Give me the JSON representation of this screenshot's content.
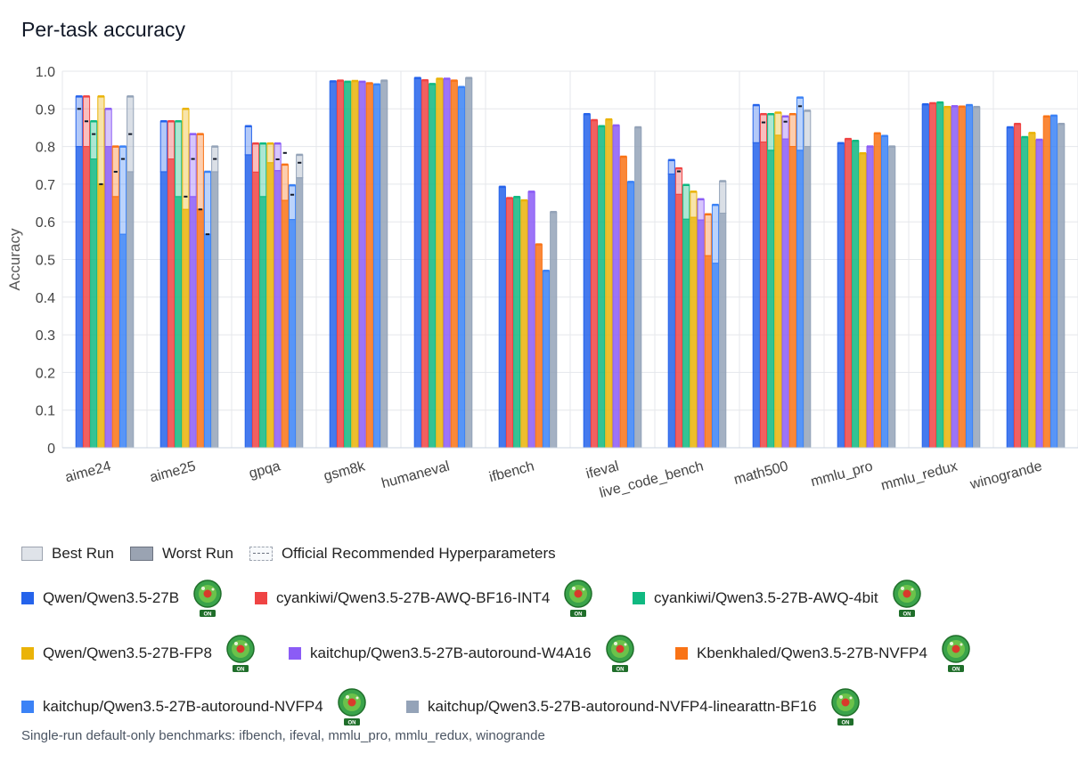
{
  "title": "Per-task accuracy",
  "legend": {
    "best_run": "Best Run",
    "worst_run": "Worst Run",
    "official": "Official Recommended Hyperparameters"
  },
  "badge_text": "ON",
  "footnote": "Single-run default-only benchmarks: ifbench, ifeval, mmlu_pro, mmlu_redux, winogrande",
  "colors": {
    "grid": "#e5e7eb",
    "axis_text": "#444444"
  },
  "chart_data": {
    "type": "bar",
    "title": "Per-task accuracy",
    "xlabel": "",
    "ylabel": "Accuracy",
    "ylim": [
      0,
      1.0
    ],
    "yticks": [
      "0",
      "0.1",
      "0.2",
      "0.3",
      "0.4",
      "0.5",
      "0.6",
      "0.7",
      "0.8",
      "0.9",
      "1.0"
    ],
    "categories": [
      "aime24",
      "aime25",
      "gpqa",
      "gsm8k",
      "humaneval",
      "ifbench",
      "ifeval",
      "live_code_bench",
      "math500",
      "mmlu_pro",
      "mmlu_redux",
      "winogrande"
    ],
    "series": [
      {
        "name": "Qwen/Qwen3.5-27B",
        "color": "#2563eb",
        "values": [
          0.933,
          0.867,
          0.854,
          0.973,
          0.982,
          0.693,
          0.886,
          0.764,
          0.91,
          0.809,
          0.912,
          0.851
        ],
        "worst": [
          0.8,
          0.733,
          0.778,
          null,
          null,
          null,
          null,
          0.727,
          0.81,
          null,
          null,
          null
        ],
        "official": [
          0.9,
          null,
          null,
          null,
          null,
          null,
          null,
          null,
          null,
          null,
          null,
          null
        ]
      },
      {
        "name": "cyankiwi/Qwen3.5-27B-AWQ-BF16-INT4",
        "color": "#ef4444",
        "values": [
          0.933,
          0.867,
          0.808,
          0.975,
          0.976,
          0.663,
          0.87,
          0.742,
          0.886,
          0.82,
          0.915,
          0.86
        ],
        "worst": [
          0.8,
          0.767,
          0.732,
          null,
          null,
          null,
          null,
          0.673,
          0.812,
          null,
          null,
          null
        ],
        "official": [
          0.867,
          null,
          null,
          null,
          null,
          null,
          null,
          0.734,
          0.864,
          null,
          null,
          null
        ]
      },
      {
        "name": "cyankiwi/Qwen3.5-27B-AWQ-4bit",
        "color": "#10b981",
        "values": [
          0.867,
          0.867,
          0.808,
          0.972,
          0.966,
          0.666,
          0.854,
          0.698,
          0.886,
          0.815,
          0.917,
          0.825
        ],
        "worst": [
          0.767,
          0.667,
          0.667,
          null,
          null,
          null,
          null,
          0.607,
          0.79,
          null,
          null,
          null
        ],
        "official": [
          0.833,
          null,
          null,
          null,
          null,
          null,
          null,
          null,
          null,
          null,
          null,
          null
        ]
      },
      {
        "name": "Qwen/Qwen3.5-27B-FP8",
        "color": "#eab308",
        "values": [
          0.933,
          0.9,
          0.808,
          0.974,
          0.98,
          0.657,
          0.872,
          0.68,
          0.89,
          0.782,
          0.905,
          0.836
        ],
        "worst": [
          0.7,
          0.633,
          0.757,
          null,
          null,
          null,
          null,
          0.612,
          0.83,
          null,
          null,
          null
        ],
        "official": [
          0.7,
          0.667,
          null,
          null,
          null,
          null,
          null,
          null,
          null,
          null,
          null,
          null
        ]
      },
      {
        "name": "kaitchup/Qwen3.5-27B-autoround-W4A16",
        "color": "#8b5cf6",
        "values": [
          0.9,
          0.833,
          0.808,
          0.972,
          0.98,
          0.68,
          0.856,
          0.66,
          0.88,
          0.8,
          0.907,
          0.818
        ],
        "worst": [
          0.8,
          0.667,
          0.736,
          null,
          null,
          null,
          null,
          0.605,
          0.82,
          null,
          null,
          null
        ],
        "official": [
          null,
          0.767,
          0.766,
          null,
          null,
          null,
          null,
          null,
          0.866,
          null,
          null,
          null
        ]
      },
      {
        "name": "Kbenkhaled/Qwen3.5-27B-NVFP4",
        "color": "#f97316",
        "values": [
          0.8,
          0.833,
          0.752,
          0.968,
          0.975,
          0.54,
          0.773,
          0.62,
          0.886,
          0.835,
          0.906,
          0.88
        ],
        "worst": [
          0.667,
          0.633,
          0.657,
          null,
          null,
          null,
          null,
          0.51,
          0.8,
          null,
          null,
          null
        ],
        "official": [
          0.733,
          0.633,
          0.783,
          null,
          null,
          null,
          null,
          null,
          null,
          null,
          null,
          null
        ]
      },
      {
        "name": "kaitchup/Qwen3.5-27B-autoround-NVFP4",
        "color": "#3b82f6",
        "values": [
          0.8,
          0.733,
          0.697,
          0.965,
          0.958,
          0.47,
          0.706,
          0.645,
          0.93,
          0.828,
          0.91,
          0.882
        ],
        "worst": [
          0.567,
          0.567,
          0.606,
          null,
          null,
          null,
          null,
          0.49,
          0.79,
          null,
          null,
          null
        ],
        "official": [
          0.767,
          0.567,
          0.672,
          null,
          null,
          null,
          null,
          null,
          0.907,
          null,
          null,
          null
        ]
      },
      {
        "name": "kaitchup/Qwen3.5-27B-autoround-NVFP4-linearattn-BF16",
        "color": "#94a3b8",
        "values": [
          0.933,
          0.8,
          0.778,
          0.975,
          0.982,
          0.626,
          0.851,
          0.708,
          0.895,
          0.8,
          0.905,
          0.86
        ],
        "worst": [
          0.733,
          0.733,
          0.717,
          null,
          null,
          null,
          null,
          0.623,
          0.8,
          null,
          null,
          null
        ],
        "official": [
          0.833,
          0.767,
          0.757,
          null,
          null,
          null,
          null,
          null,
          null,
          null,
          null,
          null
        ]
      }
    ]
  }
}
